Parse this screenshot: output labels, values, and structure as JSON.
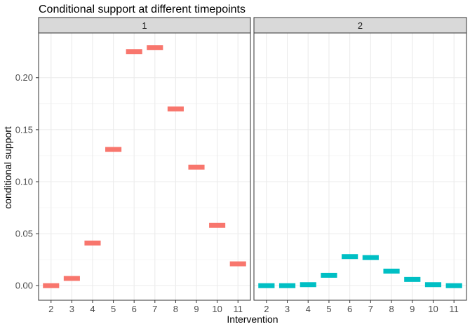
{
  "chart_data": {
    "type": "facet-crossbar",
    "title": "Conditional support at different timepoints",
    "xlabel": "Intervention",
    "ylabel": "conditional support",
    "categories": [
      "2",
      "3",
      "4",
      "5",
      "6",
      "7",
      "8",
      "9",
      "10",
      "11"
    ],
    "ylim": [
      -0.014,
      0.243
    ],
    "yticks": [
      0.0,
      0.05,
      0.1,
      0.15,
      0.2
    ],
    "ytick_labels": [
      "0.00",
      "0.05",
      "0.10",
      "0.15",
      "0.20"
    ],
    "grid": true,
    "legend": "none",
    "facets": [
      {
        "label": "1",
        "color": "#F8766D",
        "values": [
          0.0,
          0.007,
          0.041,
          0.131,
          0.225,
          0.229,
          0.17,
          0.114,
          0.058,
          0.021
        ]
      },
      {
        "label": "2",
        "color": "#00BFC4",
        "values": [
          0.0,
          0.0,
          0.001,
          0.01,
          0.028,
          0.027,
          0.014,
          0.006,
          0.001,
          0.0
        ]
      }
    ]
  }
}
